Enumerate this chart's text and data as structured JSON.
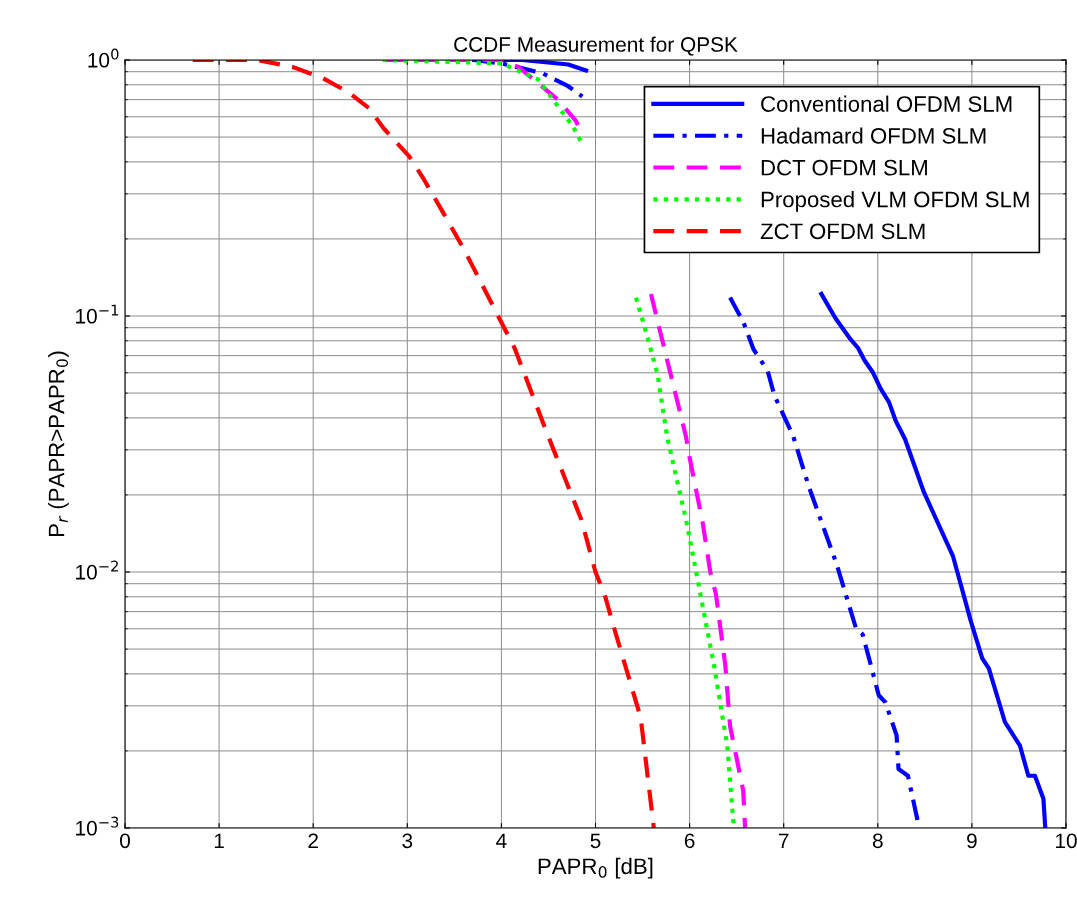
{
  "chart_data": {
    "type": "line",
    "title": "CCDF Measurement for QPSK",
    "xlabel": "PAPR$_{0}$ [dB]",
    "ylabel": "P$_{r}$ (PAPR>PAPR$_{0}$)",
    "log": "y",
    "xlim": [
      0,
      10
    ],
    "xticks": [
      0,
      1,
      2,
      3,
      4,
      5,
      6,
      7,
      8,
      9,
      10
    ],
    "ylim": [
      0.001,
      1
    ],
    "yticks": [
      {
        "value": 0.001,
        "label": "10$^{−3}$"
      },
      {
        "value": 0.01,
        "label": "10$^{−2}$"
      },
      {
        "value": 0.1,
        "label": "10$^{−1}$"
      },
      {
        "value": 1,
        "label": "10$^{0}$"
      }
    ],
    "grid": true,
    "legend": "top right",
    "series": [
      {
        "name": "Conventional OFDM SLM",
        "color": "#0000ff",
        "line_style": "solid",
        "x": [
          3.71,
          4.22,
          4.47,
          4.71,
          4.9,
          5.0,
          7.4,
          7.55,
          7.7,
          7.79,
          7.86,
          7.95,
          8.03,
          8.12,
          8.19,
          8.29,
          8.49,
          8.8,
          8.99,
          9.11,
          9.18,
          9.35,
          9.51,
          9.6,
          9.67,
          9.76,
          9.78
        ],
        "values": [
          1,
          1,
          0.98,
          0.96,
          0.91,
          null,
          0.122,
          0.098,
          0.082,
          0.075,
          0.067,
          0.06,
          0.052,
          0.046,
          0.039,
          0.033,
          0.0205,
          0.0115,
          0.0064,
          0.0046,
          0.0042,
          0.0026,
          0.0021,
          0.0016,
          0.0016,
          0.0013,
          0.001
        ]
      },
      {
        "name": "Hadamard OFDM SLM",
        "color": "#0000ff",
        "line_style": "dashdot",
        "x": [
          3.71,
          4.0,
          4.43,
          4.71,
          4.86,
          5.0,
          6.43,
          6.57,
          6.68,
          6.83,
          6.9,
          7.1,
          7.27,
          7.56,
          7.77,
          7.84,
          8.01,
          8.08,
          8.2,
          8.22,
          8.32,
          8.44
        ],
        "values": [
          1,
          0.97,
          0.89,
          0.79,
          0.72,
          null,
          0.118,
          0.095,
          0.074,
          0.061,
          0.049,
          0.034,
          0.0214,
          0.0108,
          0.006,
          0.0057,
          0.0033,
          0.0031,
          0.0023,
          0.0017,
          0.0016,
          0.001
        ]
      },
      {
        "name": "DCT OFDM SLM",
        "color": "#ff00ff",
        "line_style": "dashed",
        "x": [
          2.74,
          4.0,
          4.18,
          4.6,
          4.79,
          4.86,
          5.0,
          5.59,
          5.69,
          5.81,
          5.96,
          6.0,
          6.14,
          6.22,
          6.28,
          6.38,
          6.43,
          6.57,
          6.59
        ],
        "values": [
          1,
          1,
          0.94,
          0.7,
          0.58,
          0.51,
          null,
          0.122,
          0.086,
          0.057,
          0.034,
          0.028,
          0.0155,
          0.01,
          0.0082,
          0.0043,
          0.0025,
          0.0014,
          0.001
        ]
      },
      {
        "name": "Proposed VLM OFDM SLM",
        "color": "#00ff00",
        "line_style": "dotted",
        "x": [
          2.74,
          4.0,
          4.39,
          4.6,
          4.76,
          4.86,
          5.0,
          5.43,
          5.54,
          5.66,
          5.76,
          5.97,
          6.07,
          6.26,
          6.4,
          6.47
        ],
        "values": [
          1,
          0.97,
          0.84,
          0.66,
          0.55,
          0.47,
          null,
          0.118,
          0.086,
          0.059,
          0.034,
          0.0155,
          0.01,
          0.0043,
          0.0021,
          0.001
        ]
      },
      {
        "name": "ZCT OFDM SLM",
        "color": "#ff0000",
        "line_style": "dashed",
        "x": [
          0.72,
          1.41,
          1.78,
          2.1,
          2.37,
          2.59,
          2.75,
          3.02,
          3.18,
          3.39,
          3.61,
          3.93,
          4.14,
          4.47,
          4.68,
          4.85,
          5.0,
          5.1,
          5.2,
          5.48,
          5.62
        ],
        "values": [
          1,
          1,
          0.94,
          0.85,
          0.75,
          0.65,
          0.54,
          0.42,
          0.34,
          0.25,
          0.18,
          0.106,
          0.075,
          0.036,
          0.023,
          0.016,
          0.01,
          0.0081,
          0.006,
          0.0027,
          0.001
        ]
      }
    ]
  }
}
